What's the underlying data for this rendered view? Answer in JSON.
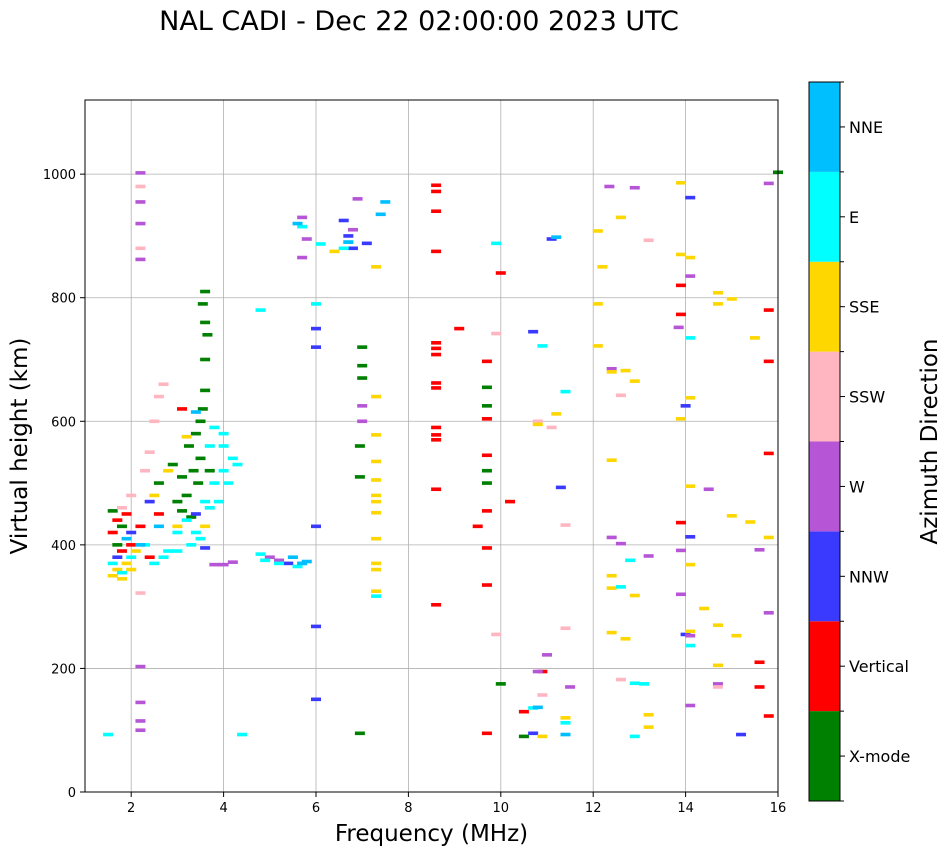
{
  "chart_data": {
    "type": "scatter",
    "title": "NAL CADI - Dec 22 02:00:00 2023 UTC",
    "xlabel": "Frequency (MHz)",
    "ylabel": "Virtual height (km)",
    "xlim": [
      1,
      16
    ],
    "ylim": [
      0,
      1120
    ],
    "xticks": [
      2,
      4,
      6,
      8,
      10,
      12,
      14,
      16
    ],
    "yticks": [
      0,
      200,
      400,
      600,
      800,
      1000
    ],
    "grid": true,
    "colorbar": {
      "label": "Azimuth Direction",
      "position": "right",
      "categories": [
        "X-mode",
        "Vertical",
        "NNW",
        "W",
        "SSW",
        "SSE",
        "E",
        "NNE"
      ],
      "colors": [
        "#008000",
        "#ff0000",
        "#3a3aff",
        "#b656d6",
        "#ffb6c1",
        "#ffd700",
        "#00ffff",
        "#00bfff"
      ]
    },
    "series": [
      {
        "name": "X-mode",
        "points": [
          [
            1.6,
            455
          ],
          [
            1.8,
            430
          ],
          [
            1.7,
            400
          ],
          [
            2.6,
            500
          ],
          [
            2.9,
            530
          ],
          [
            3.0,
            470
          ],
          [
            3.1,
            455
          ],
          [
            3.2,
            480
          ],
          [
            3.3,
            445
          ],
          [
            3.35,
            520
          ],
          [
            3.4,
            580
          ],
          [
            3.5,
            540
          ],
          [
            3.5,
            600
          ],
          [
            3.55,
            620
          ],
          [
            3.6,
            650
          ],
          [
            3.6,
            700
          ],
          [
            3.65,
            740
          ],
          [
            3.55,
            790
          ],
          [
            3.6,
            810
          ],
          [
            3.6,
            760
          ],
          [
            3.45,
            500
          ],
          [
            3.1,
            510
          ],
          [
            3.25,
            560
          ],
          [
            3.7,
            520
          ],
          [
            7.0,
            720
          ],
          [
            7.0,
            690
          ],
          [
            7.0,
            670
          ],
          [
            6.95,
            560
          ],
          [
            6.95,
            510
          ],
          [
            6.95,
            95
          ],
          [
            9.7,
            655
          ],
          [
            9.7,
            625
          ],
          [
            9.7,
            520
          ],
          [
            9.7,
            500
          ],
          [
            10.0,
            175
          ],
          [
            10.5,
            90
          ],
          [
            16.0,
            1003
          ]
        ]
      },
      {
        "name": "Vertical",
        "points": [
          [
            1.6,
            420
          ],
          [
            1.7,
            440
          ],
          [
            1.8,
            390
          ],
          [
            1.9,
            450
          ],
          [
            2.0,
            400
          ],
          [
            2.2,
            430
          ],
          [
            2.4,
            380
          ],
          [
            2.6,
            450
          ],
          [
            3.1,
            620
          ],
          [
            8.6,
            982
          ],
          [
            8.6,
            972
          ],
          [
            8.6,
            940
          ],
          [
            8.6,
            875
          ],
          [
            8.6,
            727
          ],
          [
            8.6,
            718
          ],
          [
            8.6,
            708
          ],
          [
            8.6,
            662
          ],
          [
            8.6,
            654
          ],
          [
            8.6,
            590
          ],
          [
            8.6,
            578
          ],
          [
            8.6,
            570
          ],
          [
            8.6,
            490
          ],
          [
            8.6,
            303
          ],
          [
            9.1,
            750
          ],
          [
            9.5,
            430
          ],
          [
            9.7,
            697
          ],
          [
            9.7,
            604
          ],
          [
            9.7,
            545
          ],
          [
            9.7,
            455
          ],
          [
            9.7,
            395
          ],
          [
            9.7,
            335
          ],
          [
            9.7,
            95
          ],
          [
            10.0,
            840
          ],
          [
            10.2,
            470
          ],
          [
            10.5,
            130
          ],
          [
            10.9,
            195
          ],
          [
            13.9,
            820
          ],
          [
            13.9,
            773
          ],
          [
            13.9,
            436
          ],
          [
            15.8,
            780
          ],
          [
            15.8,
            697
          ],
          [
            15.8,
            548
          ],
          [
            15.6,
            210
          ],
          [
            15.6,
            170
          ],
          [
            15.8,
            123
          ]
        ]
      },
      {
        "name": "NNW",
        "points": [
          [
            1.7,
            380
          ],
          [
            2.0,
            420
          ],
          [
            2.4,
            470
          ],
          [
            3.4,
            450
          ],
          [
            3.6,
            395
          ],
          [
            6.0,
            750
          ],
          [
            6.0,
            720
          ],
          [
            6.0,
            430
          ],
          [
            6.0,
            268
          ],
          [
            6.0,
            150
          ],
          [
            6.6,
            925
          ],
          [
            6.7,
            900
          ],
          [
            6.8,
            880
          ],
          [
            7.1,
            888
          ],
          [
            10.7,
            745
          ],
          [
            11.1,
            895
          ],
          [
            11.3,
            493
          ],
          [
            14.1,
            962
          ],
          [
            14.0,
            625
          ],
          [
            14.1,
            413
          ],
          [
            14.0,
            255
          ],
          [
            15.2,
            93
          ],
          [
            10.7,
            95
          ],
          [
            5.4,
            370
          ]
        ]
      },
      {
        "name": "W",
        "points": [
          [
            2.2,
            1002
          ],
          [
            2.2,
            955
          ],
          [
            2.2,
            920
          ],
          [
            2.2,
            862
          ],
          [
            2.2,
            203
          ],
          [
            2.2,
            145
          ],
          [
            2.2,
            115
          ],
          [
            2.2,
            100
          ],
          [
            3.8,
            368
          ],
          [
            4.0,
            368
          ],
          [
            4.2,
            372
          ],
          [
            5.0,
            380
          ],
          [
            5.2,
            375
          ],
          [
            5.7,
            930
          ],
          [
            5.8,
            895
          ],
          [
            5.7,
            865
          ],
          [
            6.8,
            910
          ],
          [
            6.9,
            960
          ],
          [
            7.0,
            600
          ],
          [
            7.0,
            625
          ],
          [
            11.0,
            222
          ],
          [
            11.5,
            170
          ],
          [
            12.35,
            980
          ],
          [
            12.9,
            978
          ],
          [
            12.4,
            685
          ],
          [
            12.4,
            412
          ],
          [
            12.6,
            402
          ],
          [
            13.2,
            382
          ],
          [
            13.9,
            391
          ],
          [
            13.9,
            320
          ],
          [
            13.85,
            752
          ],
          [
            14.1,
            835
          ],
          [
            14.1,
            253
          ],
          [
            14.5,
            490
          ],
          [
            14.7,
            175
          ],
          [
            15.8,
            985
          ],
          [
            15.6,
            392
          ],
          [
            15.8,
            290
          ],
          [
            14.1,
            140
          ],
          [
            10.8,
            195
          ]
        ]
      },
      {
        "name": "SSW",
        "points": [
          [
            1.8,
            460
          ],
          [
            2.0,
            480
          ],
          [
            2.3,
            520
          ],
          [
            2.4,
            550
          ],
          [
            2.5,
            600
          ],
          [
            2.6,
            640
          ],
          [
            2.7,
            660
          ],
          [
            2.2,
            322
          ],
          [
            2.2,
            980
          ],
          [
            2.2,
            880
          ],
          [
            9.9,
            742
          ],
          [
            9.9,
            255
          ],
          [
            10.8,
            600
          ],
          [
            11.1,
            590
          ],
          [
            11.4,
            432
          ],
          [
            11.4,
            265
          ],
          [
            12.6,
            642
          ],
          [
            12.6,
            182
          ],
          [
            13.2,
            893
          ],
          [
            14.7,
            170
          ],
          [
            10.9,
            157
          ]
        ]
      },
      {
        "name": "SSE",
        "points": [
          [
            1.6,
            350
          ],
          [
            1.7,
            360
          ],
          [
            1.8,
            345
          ],
          [
            1.9,
            370
          ],
          [
            2.0,
            360
          ],
          [
            2.1,
            390
          ],
          [
            2.5,
            480
          ],
          [
            2.8,
            520
          ],
          [
            3.0,
            430
          ],
          [
            3.2,
            575
          ],
          [
            3.6,
            430
          ],
          [
            7.3,
            640
          ],
          [
            7.3,
            578
          ],
          [
            7.3,
            535
          ],
          [
            7.3,
            505
          ],
          [
            7.3,
            480
          ],
          [
            7.3,
            470
          ],
          [
            7.3,
            452
          ],
          [
            7.3,
            410
          ],
          [
            7.3,
            370
          ],
          [
            7.3,
            360
          ],
          [
            7.3,
            325
          ],
          [
            7.3,
            850
          ],
          [
            6.4,
            875
          ],
          [
            10.8,
            595
          ],
          [
            11.2,
            612
          ],
          [
            10.9,
            90
          ],
          [
            11.4,
            120
          ],
          [
            12.1,
            908
          ],
          [
            12.2,
            850
          ],
          [
            12.1,
            790
          ],
          [
            12.1,
            722
          ],
          [
            12.4,
            680
          ],
          [
            12.7,
            682
          ],
          [
            12.9,
            665
          ],
          [
            12.4,
            537
          ],
          [
            12.4,
            350
          ],
          [
            12.4,
            330
          ],
          [
            12.4,
            258
          ],
          [
            12.7,
            248
          ],
          [
            12.9,
            318
          ],
          [
            13.2,
            125
          ],
          [
            13.2,
            105
          ],
          [
            13.9,
            986
          ],
          [
            13.9,
            870
          ],
          [
            14.1,
            865
          ],
          [
            14.1,
            638
          ],
          [
            13.9,
            604
          ],
          [
            14.1,
            495
          ],
          [
            14.1,
            368
          ],
          [
            14.1,
            260
          ],
          [
            14.4,
            297
          ],
          [
            14.7,
            808
          ],
          [
            14.7,
            790
          ],
          [
            15.0,
            798
          ],
          [
            15.5,
            735
          ],
          [
            15.0,
            447
          ],
          [
            15.4,
            437
          ],
          [
            15.8,
            412
          ],
          [
            14.7,
            270
          ],
          [
            15.1,
            253
          ],
          [
            14.7,
            205
          ],
          [
            12.6,
            930
          ]
        ]
      },
      {
        "name": "E",
        "points": [
          [
            1.6,
            370
          ],
          [
            1.8,
            355
          ],
          [
            2.0,
            380
          ],
          [
            2.3,
            400
          ],
          [
            2.5,
            370
          ],
          [
            2.8,
            390
          ],
          [
            3.0,
            420
          ],
          [
            3.2,
            440
          ],
          [
            3.4,
            420
          ],
          [
            3.6,
            470
          ],
          [
            3.8,
            500
          ],
          [
            4.0,
            520
          ],
          [
            4.2,
            540
          ],
          [
            3.9,
            470
          ],
          [
            4.0,
            580
          ],
          [
            3.7,
            560
          ],
          [
            3.5,
            410
          ],
          [
            3.3,
            400
          ],
          [
            3.0,
            390
          ],
          [
            2.7,
            380
          ],
          [
            3.7,
            460
          ],
          [
            4.1,
            500
          ],
          [
            4.0,
            560
          ],
          [
            4.3,
            530
          ],
          [
            3.8,
            590
          ],
          [
            1.5,
            93
          ],
          [
            4.4,
            93
          ],
          [
            4.8,
            385
          ],
          [
            4.9,
            375
          ],
          [
            5.2,
            370
          ],
          [
            5.6,
            365
          ],
          [
            5.7,
            370
          ],
          [
            4.8,
            780
          ],
          [
            5.7,
            915
          ],
          [
            6.0,
            790
          ],
          [
            6.1,
            887
          ],
          [
            6.6,
            880
          ],
          [
            6.7,
            890
          ],
          [
            7.3,
            317
          ],
          [
            9.9,
            888
          ],
          [
            10.7,
            136
          ],
          [
            11.4,
            112
          ],
          [
            11.4,
            648
          ],
          [
            12.8,
            375
          ],
          [
            12.9,
            176
          ],
          [
            12.6,
            332
          ],
          [
            12.9,
            90
          ],
          [
            13.1,
            175
          ],
          [
            14.1,
            735
          ],
          [
            14.1,
            237
          ],
          [
            10.9,
            722
          ]
        ]
      },
      {
        "name": "NNE",
        "points": [
          [
            1.9,
            410
          ],
          [
            2.2,
            400
          ],
          [
            2.6,
            430
          ],
          [
            3.4,
            615
          ],
          [
            5.5,
            380
          ],
          [
            5.7,
            370
          ],
          [
            5.8,
            373
          ],
          [
            5.6,
            920
          ],
          [
            6.7,
            890
          ],
          [
            7.5,
            955
          ],
          [
            7.4,
            935
          ],
          [
            11.2,
            898
          ],
          [
            11.4,
            93
          ],
          [
            10.8,
            137
          ]
        ]
      }
    ]
  }
}
